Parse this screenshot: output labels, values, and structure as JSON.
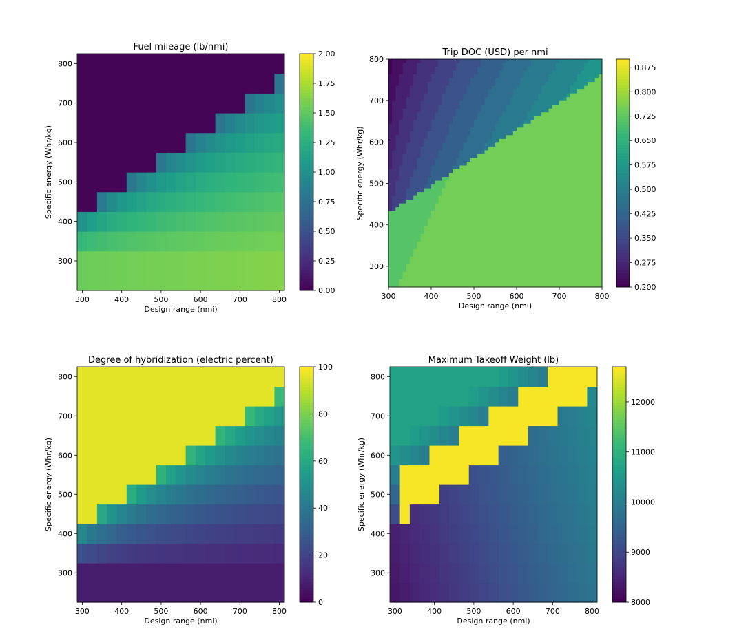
{
  "chart_data": [
    {
      "type": "heatmap",
      "title": "Fuel mileage (lb/nmi)",
      "xlabel": "Design range (nmi)",
      "ylabel": "Specific energy (Whr/kg)",
      "xlim": [
        287,
        813
      ],
      "ylim": [
        225,
        825
      ],
      "x_ticks": [
        "300",
        "400",
        "500",
        "600",
        "700",
        "800"
      ],
      "y_ticks": [
        "300",
        "400",
        "500",
        "600",
        "700",
        "800"
      ],
      "colorbar": {
        "min": 0,
        "max": 2,
        "ticks": [
          "0.00",
          "0.25",
          "0.50",
          "0.75",
          "1.00",
          "1.25",
          "1.50",
          "1.75",
          "2.00"
        ]
      },
      "colormap": "viridis"
    },
    {
      "type": "contour",
      "title": "Trip DOC (USD) per nmi",
      "xlabel": "Design range (nmi)",
      "ylabel": "Specific energy (Whr/kg)",
      "xlim": [
        300,
        800
      ],
      "ylim": [
        250,
        800
      ],
      "x_ticks": [
        "300",
        "400",
        "500",
        "600",
        "700",
        "800"
      ],
      "y_ticks": [
        "300",
        "400",
        "500",
        "600",
        "700",
        "800"
      ],
      "colorbar": {
        "min": 0.2,
        "max": 0.9,
        "ticks": [
          "0.200",
          "0.275",
          "0.350",
          "0.425",
          "0.500",
          "0.575",
          "0.650",
          "0.725",
          "0.800",
          "0.875"
        ]
      },
      "colormap": "viridis"
    },
    {
      "type": "heatmap",
      "title": "Degree of hybridization (electric percent)",
      "xlabel": "Design range (nmi)",
      "ylabel": "Specific energy (Whr/kg)",
      "xlim": [
        287,
        813
      ],
      "ylim": [
        225,
        825
      ],
      "x_ticks": [
        "300",
        "400",
        "500",
        "600",
        "700",
        "800"
      ],
      "y_ticks": [
        "300",
        "400",
        "500",
        "600",
        "700",
        "800"
      ],
      "colorbar": {
        "min": 0,
        "max": 100,
        "ticks": [
          "0",
          "20",
          "40",
          "60",
          "80",
          "100"
        ]
      },
      "colormap": "viridis"
    },
    {
      "type": "heatmap",
      "title": "Maximum Takeoff Weight (lb)",
      "xlabel": "Design range (nmi)",
      "ylabel": "Specific energy (Whr/kg)",
      "xlim": [
        287,
        813
      ],
      "ylim": [
        225,
        825
      ],
      "x_ticks": [
        "300",
        "400",
        "500",
        "600",
        "700",
        "800"
      ],
      "y_ticks": [
        "300",
        "400",
        "500",
        "600",
        "700",
        "800"
      ],
      "colorbar": {
        "min": 8000,
        "max": 12700,
        "ticks": [
          "8000",
          "9000",
          "10000",
          "11000",
          "12000"
        ]
      },
      "colormap": "viridis"
    }
  ]
}
